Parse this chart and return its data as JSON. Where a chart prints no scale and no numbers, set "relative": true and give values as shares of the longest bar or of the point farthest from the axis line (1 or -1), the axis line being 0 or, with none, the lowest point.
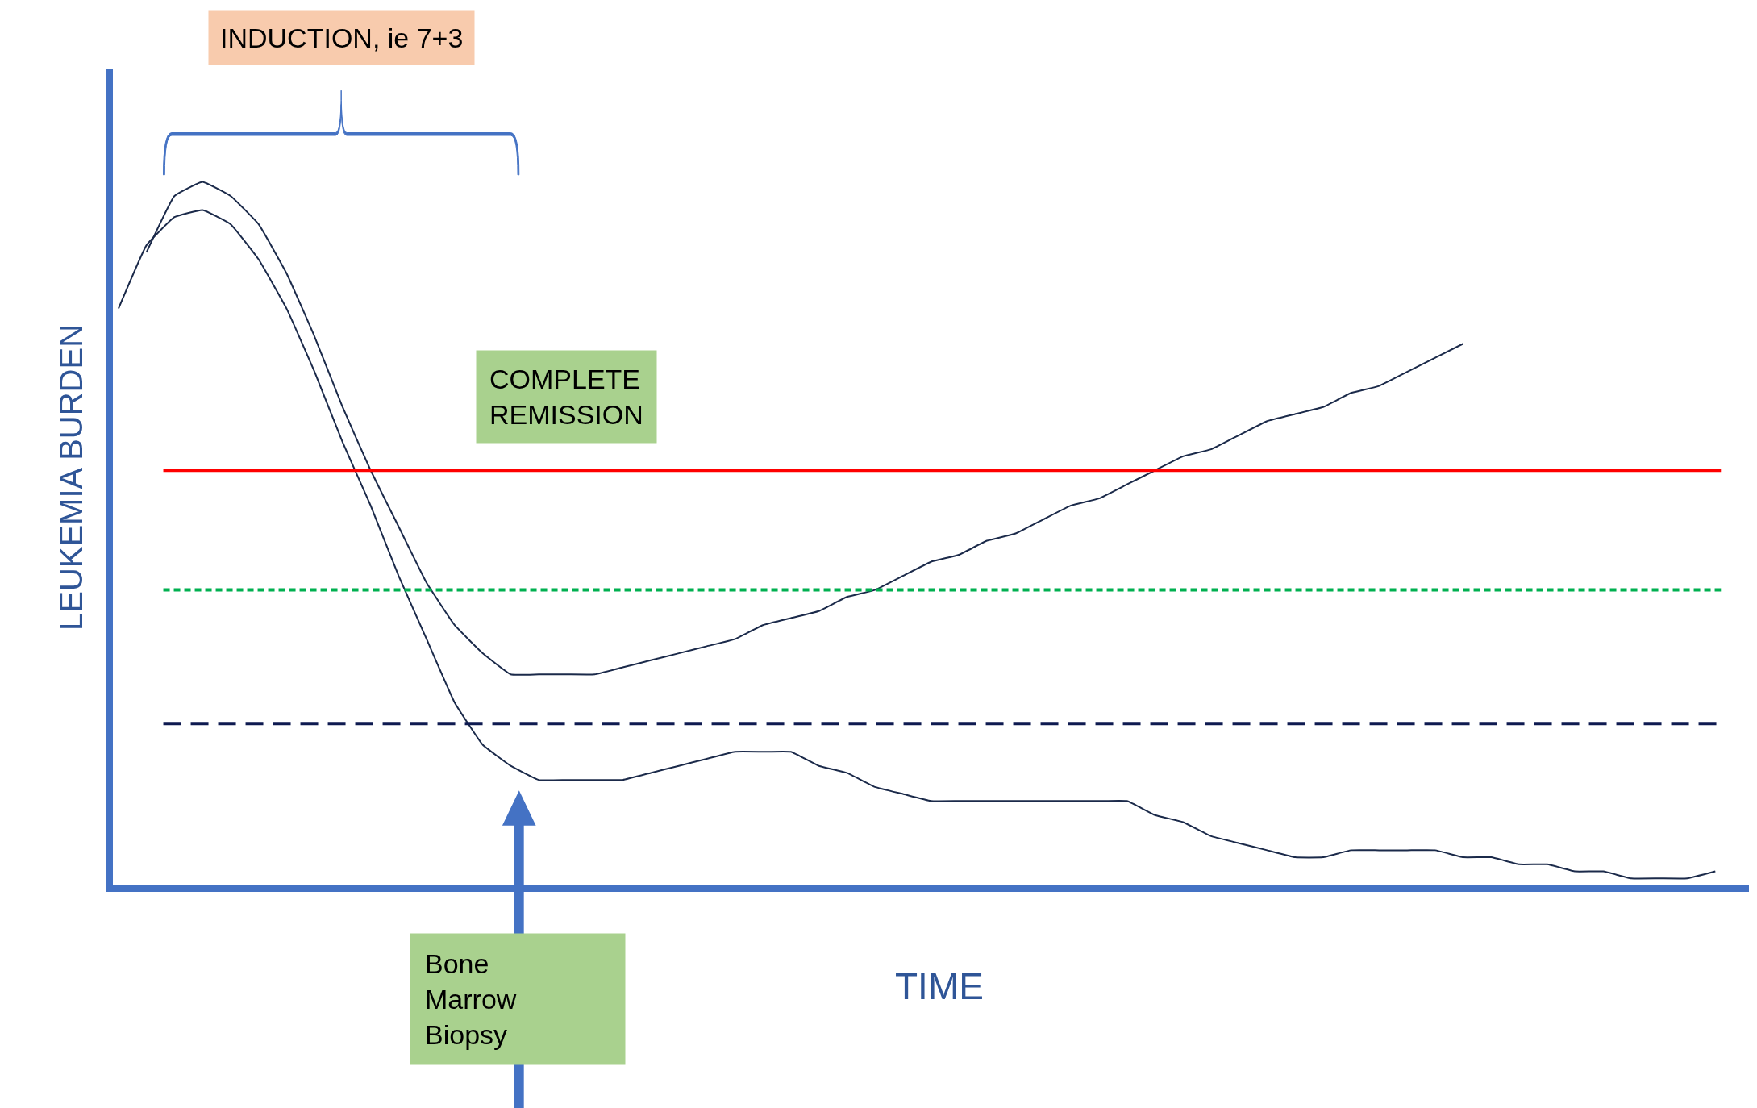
{
  "chart_data": {
    "type": "line",
    "relative": true,
    "xlabel": "TIME",
    "ylabel": "LEUKEMIA BURDEN",
    "categories": [
      null,
      null,
      null,
      null,
      null,
      null,
      null,
      null,
      null,
      null,
      null,
      null,
      null,
      null,
      null,
      null,
      null,
      null,
      null,
      null,
      null,
      null,
      null,
      null,
      null,
      null,
      null,
      null,
      null,
      null,
      null,
      null,
      null,
      null,
      null,
      null,
      null,
      null,
      null,
      null,
      null,
      null,
      null,
      null,
      null,
      null,
      null,
      null,
      null,
      null,
      null,
      null,
      null,
      null,
      null,
      null,
      null,
      null
    ],
    "series": [
      {
        "color": "#1b2a4a",
        "values": [
          0.82,
          0.91,
          0.95,
          0.96,
          0.94,
          0.89,
          0.82,
          0.73,
          0.63,
          0.54,
          0.44,
          0.35,
          0.26,
          0.2,
          0.17,
          0.15,
          0.15,
          0.15,
          0.15,
          0.16,
          0.17,
          0.18,
          0.19,
          0.19,
          0.19,
          0.17,
          0.16,
          0.14,
          0.13,
          0.12,
          0.12,
          0.12,
          0.12,
          0.12,
          0.12,
          0.12,
          0.12,
          0.1,
          0.09,
          0.07,
          0.06,
          0.05,
          0.04,
          0.04,
          0.05,
          0.05,
          0.05,
          0.05,
          0.04,
          0.04,
          0.03,
          0.03,
          0.02,
          0.02,
          0.01,
          0.01,
          0.01,
          0.02
        ]
      },
      {
        "color": "#1b2a4a",
        "values": [
          null,
          0.9,
          0.98,
          1.0,
          0.98,
          0.94,
          0.87,
          0.78,
          0.68,
          0.59,
          0.51,
          0.43,
          0.37,
          0.33,
          0.3,
          0.3,
          0.3,
          0.3,
          0.31,
          0.32,
          0.33,
          0.34,
          0.35,
          0.37,
          0.38,
          0.39,
          0.41,
          0.42,
          0.44,
          0.46,
          0.47,
          0.49,
          0.5,
          0.52,
          0.54,
          0.55,
          0.57,
          0.59,
          0.61,
          0.62,
          0.64,
          0.66,
          0.67,
          0.68,
          0.7,
          0.71,
          0.73,
          0.75,
          0.77,
          null,
          null,
          null,
          null,
          null,
          null,
          null,
          null,
          null
        ]
      }
    ],
    "ref_lines": [
      {
        "axis": "y",
        "value": 0.59,
        "color": "#ff0000",
        "line_style": "solid"
      },
      {
        "axis": "y",
        "value": 0.42,
        "color": "#00b050",
        "line_style": "dotted"
      },
      {
        "axis": "y",
        "value": 0.23,
        "color": "#0e1a50",
        "line_style": "dashed"
      }
    ],
    "annotations": [
      "INDUCTION, ie 7+3",
      "COMPLETE REMISSION",
      "Bone Marrow Biopsy"
    ]
  }
}
